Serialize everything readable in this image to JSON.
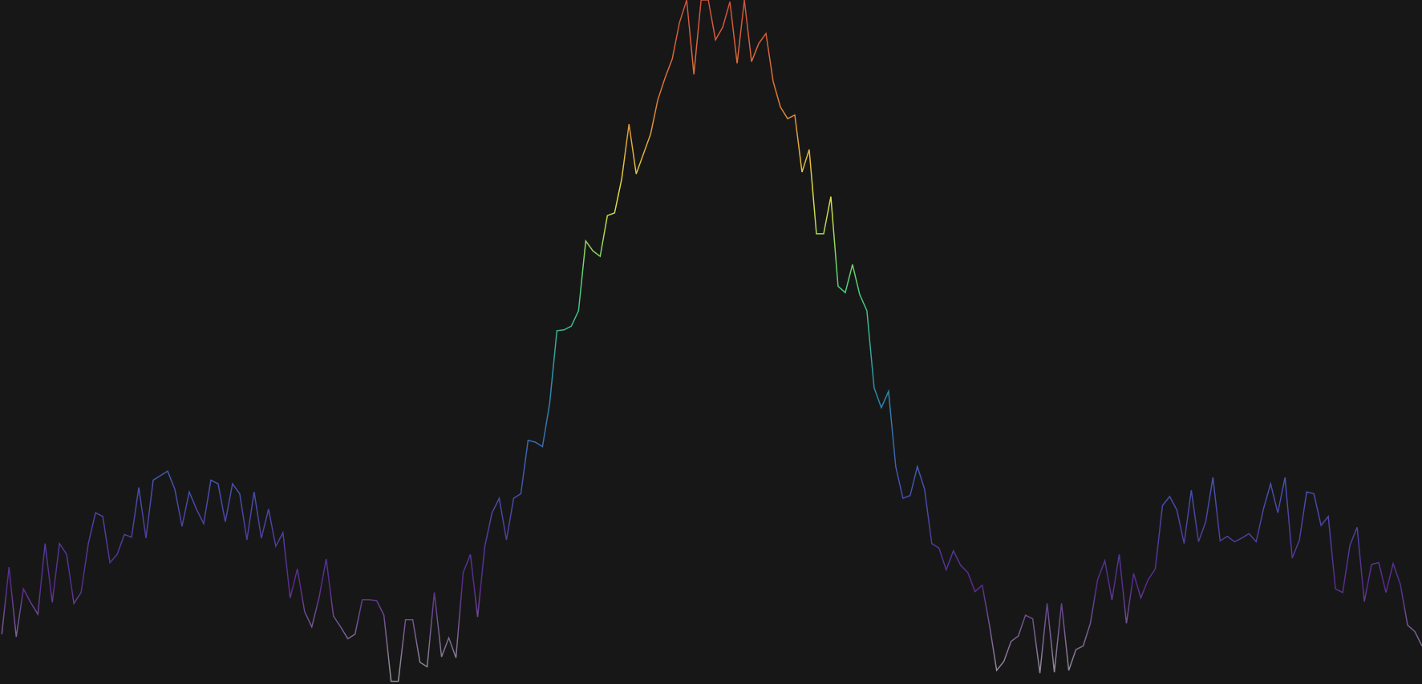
{
  "chart_data": {
    "type": "line",
    "background": "#171717",
    "colorscale": [
      "#9a9a9a",
      "#5a2a8e",
      "#4650b0",
      "#2a8cb0",
      "#46d080",
      "#e4e040",
      "#e07a36",
      "#d2503e"
    ],
    "ylim": [
      0,
      755
    ],
    "values": [
      55,
      129,
      52,
      105,
      90,
      77,
      155,
      90,
      155,
      143,
      89,
      101,
      155,
      189,
      185,
      134,
      143,
      165,
      162,
      217,
      161,
      225,
      230,
      235,
      215,
      174,
      212,
      193,
      177,
      225,
      221,
      179,
      221,
      210,
      159,
      212,
      161,
      193,
      152,
      167,
      95,
      127,
      80,
      63,
      95,
      138,
      75,
      63,
      50,
      55,
      93,
      93,
      92,
      76,
      3,
      3,
      71,
      71,
      24,
      19,
      101,
      30,
      51,
      29,
      123,
      143,
      74,
      152,
      189,
      205,
      159,
      205,
      210,
      269,
      267,
      262,
      310,
      390,
      391,
      395,
      412,
      489,
      478,
      472,
      517,
      520,
      558,
      618,
      563,
      585,
      607,
      645,
      669,
      690,
      730,
      755,
      673,
      755,
      755,
      711,
      725,
      753,
      685,
      755,
      687,
      707,
      718,
      665,
      637,
      624,
      628,
      565,
      590,
      497,
      497,
      538,
      439,
      432,
      463,
      430,
      412,
      327,
      305,
      323,
      240,
      205,
      208,
      240,
      215,
      155,
      150,
      126,
      147,
      131,
      123,
      102,
      109,
      65,
      15,
      25,
      47,
      53,
      76,
      72,
      12,
      89,
      13,
      89,
      15,
      38,
      42,
      67,
      115,
      136,
      93,
      143,
      67,
      122,
      95,
      115,
      127,
      197,
      207,
      192,
      155,
      214,
      157,
      179,
      228,
      158,
      163,
      157,
      161,
      166,
      157,
      193,
      221,
      189,
      228,
      139,
      159,
      212,
      210,
      175,
      185,
      105,
      101,
      153,
      173,
      91,
      132,
      134,
      101,
      133,
      110,
      65,
      58,
      42
    ]
  }
}
